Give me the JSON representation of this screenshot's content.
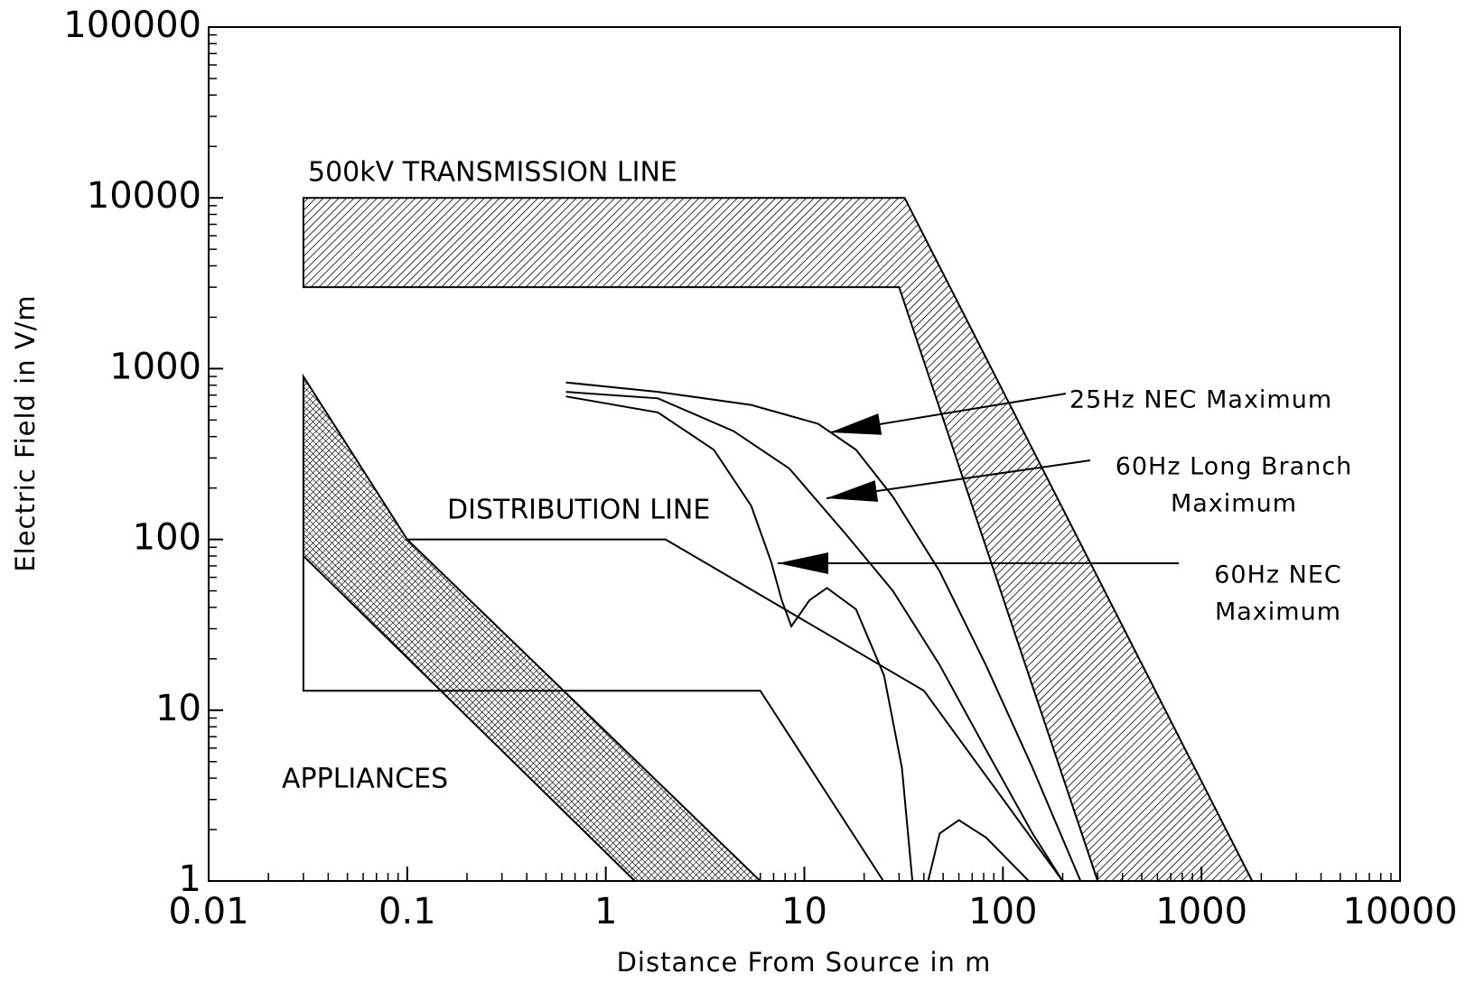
{
  "chart_data": {
    "type": "line",
    "xlabel": "Distance From Source in m",
    "ylabel": "Electric Field in V/m",
    "xscale": "log",
    "yscale": "log",
    "xlim": [
      0.01,
      10000
    ],
    "ylim": [
      1,
      100000
    ],
    "xticks": [
      0.01,
      0.1,
      1,
      10,
      100,
      1000,
      10000
    ],
    "yticks": [
      1,
      10,
      100,
      1000,
      10000,
      100000
    ],
    "minor_ticks": true,
    "series": [
      {
        "name": "500kV TRANSMISSION LINE",
        "closed": true,
        "pattern": "hatch",
        "color": "#000000",
        "x": [
          0.03,
          32,
          1800,
          300,
          30,
          0.03
        ],
        "values": [
          10000,
          10000,
          1,
          1,
          3000,
          3000
        ]
      },
      {
        "closed": true,
        "pattern": "crosshatch",
        "color": "#000000",
        "x": [
          0.03,
          0.1,
          6,
          1.4,
          0.03
        ],
        "values": [
          900,
          100,
          1,
          1,
          80
        ]
      },
      {
        "name": "DISTRIBUTION LINE",
        "closed": false,
        "color": "#000000",
        "x": [
          0.1,
          2,
          40,
          200
        ],
        "values": [
          100,
          100,
          13,
          1
        ]
      },
      {
        "name": "APPLIANCES",
        "closed": false,
        "color": "#000000",
        "x": [
          0.03,
          0.03,
          6,
          25
        ],
        "values": [
          80,
          13,
          13,
          1
        ]
      },
      {
        "label_lines": [
          "25Hz NEC Maximum"
        ],
        "closed": false,
        "color": "#000000",
        "x": [
          0.63,
          1.83,
          5.4,
          11.7,
          18.2,
          27.9,
          48,
          82,
          141,
          246
        ],
        "values": [
          830,
          731,
          613,
          476,
          335,
          178,
          65,
          18.4,
          4.6,
          1
        ]
      },
      {
        "label_lines": [
          "60Hz Long Branch",
          "Maximum"
        ],
        "closed": false,
        "color": "#000000",
        "x": [
          0.63,
          1.83,
          4.4,
          8.4,
          16.2,
          27.9,
          48,
          82,
          141,
          200
        ],
        "values": [
          731,
          670,
          431,
          260,
          107,
          50,
          18.4,
          5.9,
          1.9,
          1
        ]
      },
      {
        "label_lines": [
          "60Hz NEC",
          "Maximum"
        ],
        "closed": false,
        "color": "#000000",
        "x": [
          0.63,
          1.83,
          3.5,
          5.4,
          6.8,
          7.7,
          8.6,
          10.6,
          13,
          18.2,
          25.2,
          31,
          35,
          38,
          42,
          48,
          60,
          82,
          135
        ],
        "values": [
          687,
          554,
          335,
          157,
          74,
          44,
          31,
          44,
          52,
          39,
          16,
          4.6,
          1,
          null,
          1,
          1.9,
          2.27,
          1.8,
          1
        ]
      }
    ]
  }
}
